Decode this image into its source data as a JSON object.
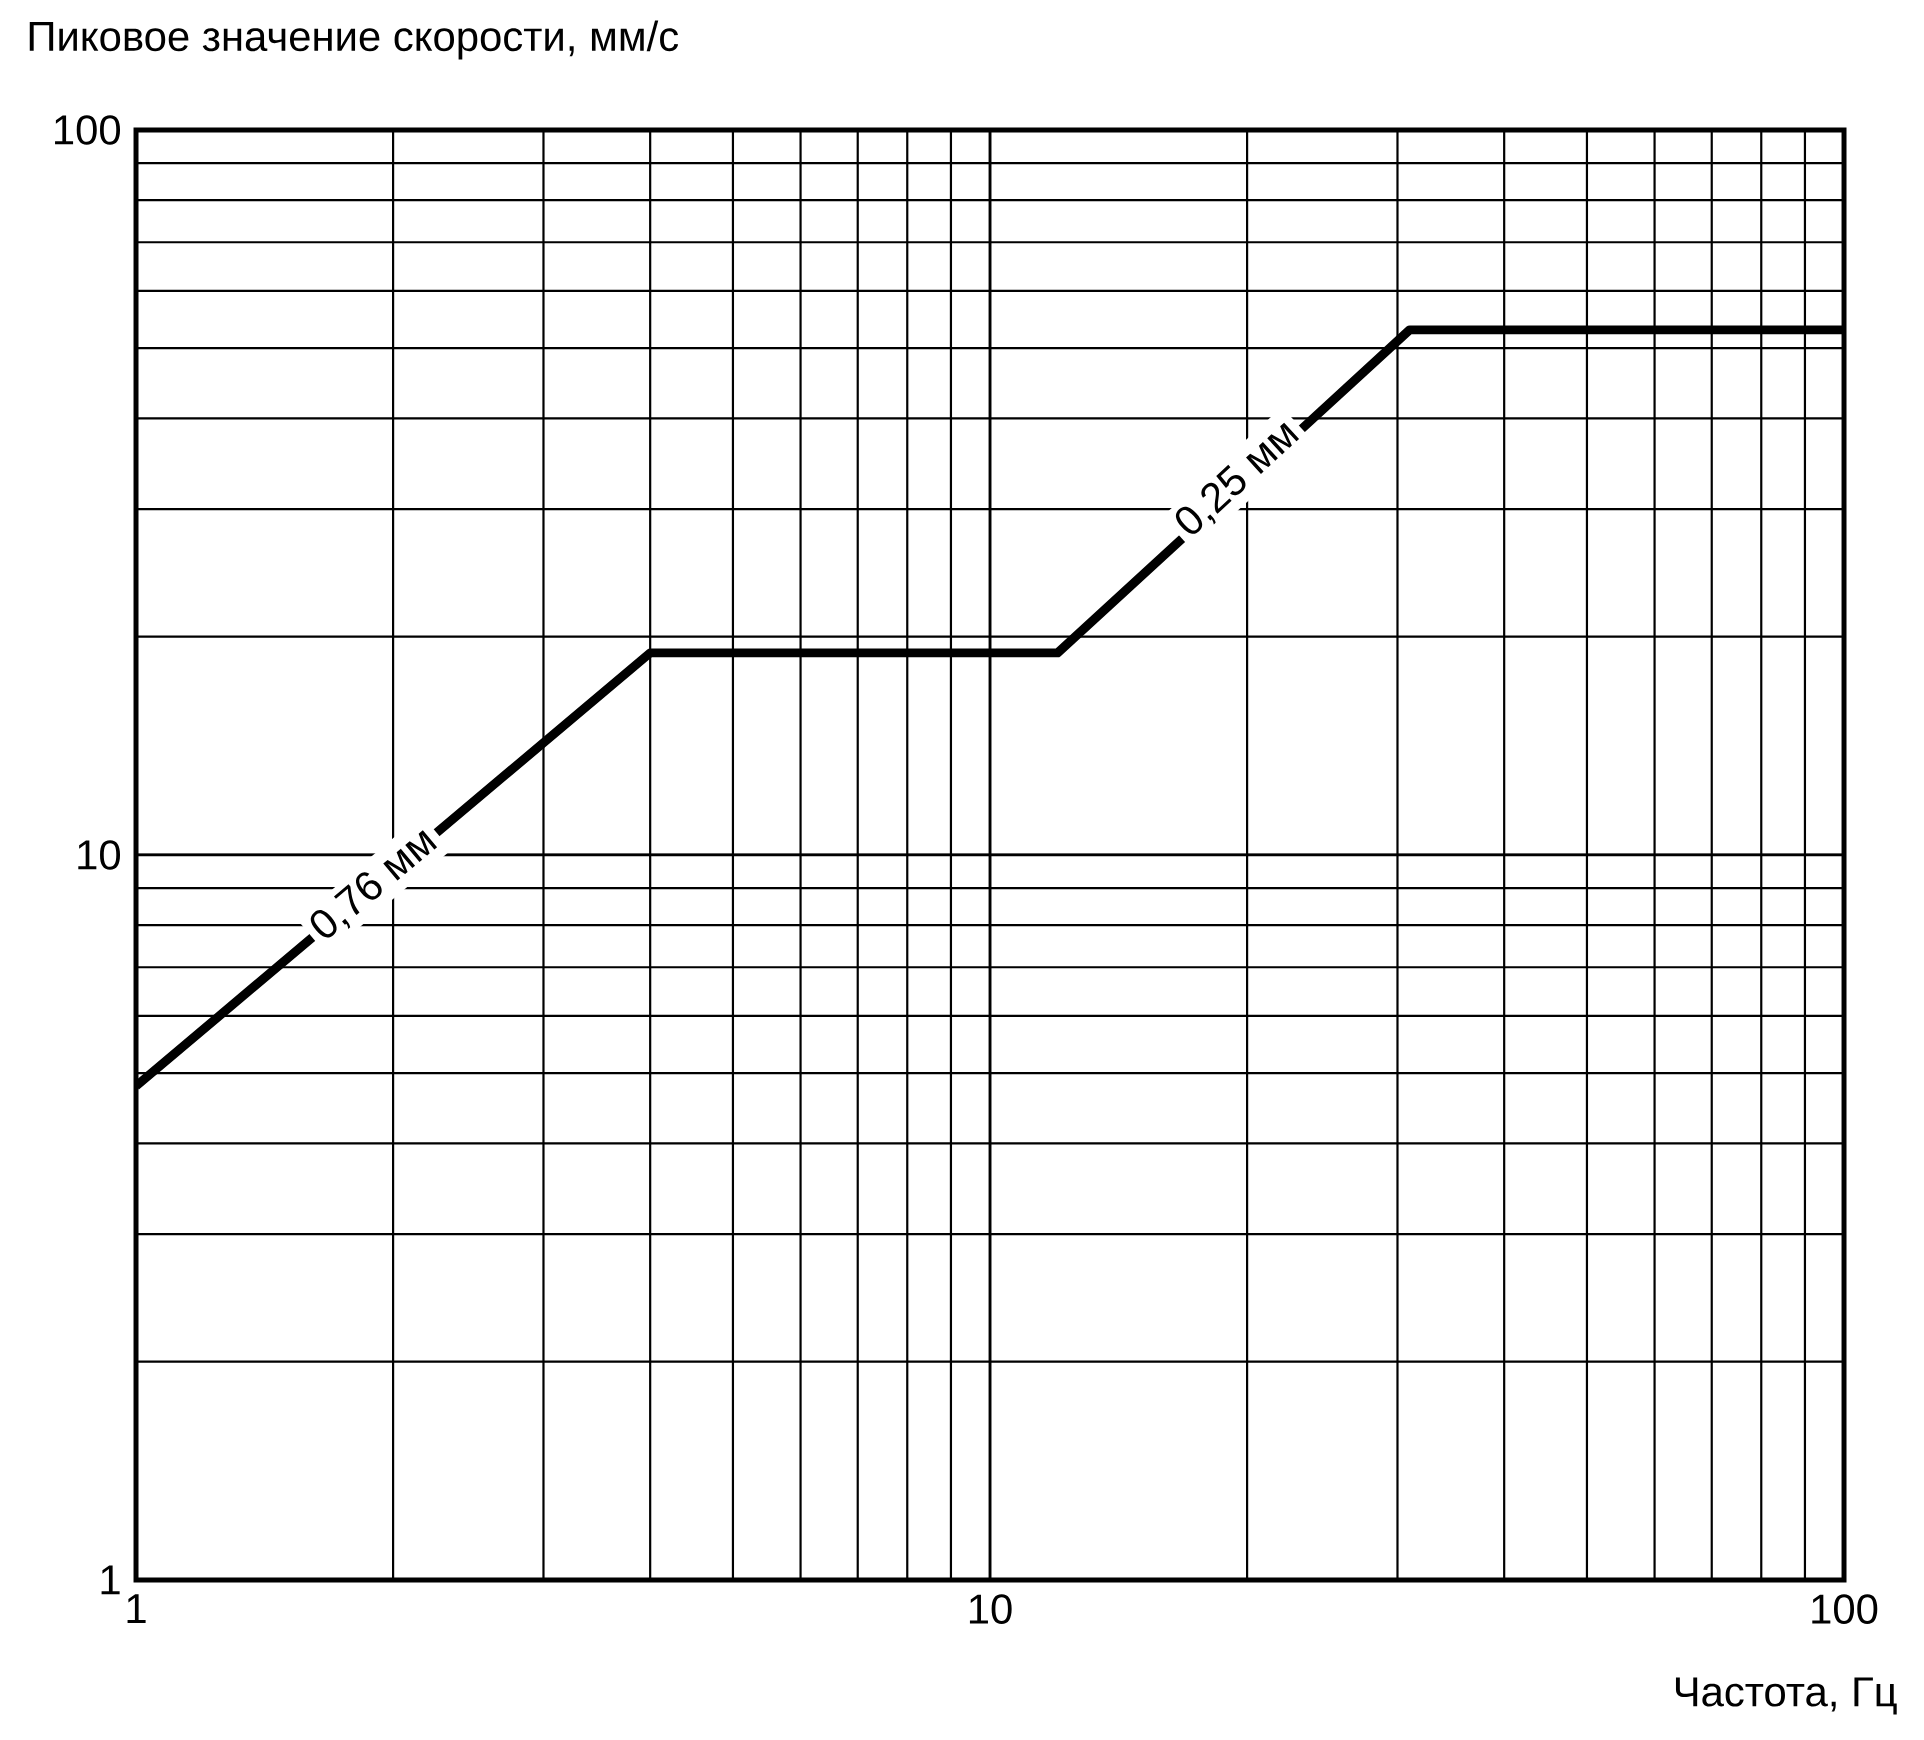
{
  "chart_data": {
    "type": "line",
    "xlabel": "Частота, Гц",
    "ylabel": "Пиковое значение скорости, мм/с",
    "x": [
      1,
      4,
      12,
      31,
      100
    ],
    "series": [
      {
        "color": "#000000",
        "values": [
          4.8,
          19,
          19,
          53,
          53
        ]
      }
    ],
    "xlim": [
      1,
      100
    ],
    "ylim": [
      1,
      100
    ],
    "xticks": [
      1,
      10,
      100
    ],
    "yticks": [
      1,
      10,
      100
    ],
    "log": "xy",
    "grid": true,
    "annotations": [
      {
        "text": "0,76 мм",
        "x": 1.9,
        "y": 9.1
      },
      {
        "text": "0,25 мм",
        "x": 19.5,
        "y": 33
      }
    ]
  }
}
